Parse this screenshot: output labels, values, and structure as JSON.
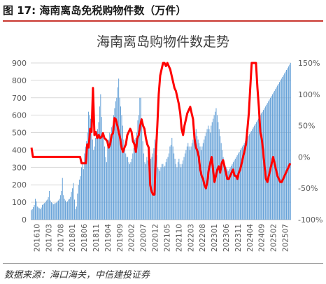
{
  "figure": {
    "label": "图 17: 海南离岛免税购物件数（万件）",
    "source": "数据来源：海口海关，中信建投证券"
  },
  "chart_data": {
    "type": "bar",
    "title": "海南离岛购物件数走势",
    "x_tick_labels": [
      "201610",
      "201703",
      "201708",
      "201801",
      "201806",
      "201811",
      "201904",
      "201909",
      "202002",
      "202007",
      "202012",
      "202105",
      "202110",
      "202203",
      "202208",
      "202301",
      "202306",
      "202311",
      "202404",
      "202409",
      "202502",
      "202507"
    ],
    "left_axis": {
      "min": 0,
      "max": 900,
      "ticks": [
        0,
        100,
        200,
        300,
        400,
        500,
        600,
        700,
        800,
        900
      ]
    },
    "right_axis": {
      "min": -100,
      "max": 150,
      "ticks": [
        "-100%",
        "-50%",
        "0%",
        "50%",
        "100%",
        "150%"
      ],
      "tick_values": [
        -100,
        -50,
        0,
        50,
        100,
        150
      ]
    },
    "grid": true,
    "colors": {
      "bars": "#5b9bd5",
      "line": "#ff0000",
      "axis_text": "#595959",
      "title": "#404040"
    },
    "series": [
      {
        "kind": "bar",
        "axis": "left",
        "unit": "万件",
        "values": [
          55,
          60,
          72,
          85,
          120,
          105,
          75,
          70,
          65,
          60,
          70,
          85,
          90,
          95,
          100,
          110,
          115,
          130,
          165,
          110,
          100,
          95,
          88,
          92,
          95,
          98,
          105,
          110,
          120,
          140,
          165,
          240,
          140,
          120,
          110,
          100,
          105,
          115,
          120,
          130,
          160,
          180,
          210,
          115,
          60,
          75,
          150,
          200,
          230,
          250,
          300,
          330,
          290,
          380,
          420,
          450,
          500,
          620,
          600,
          580,
          520,
          460,
          400,
          420,
          470,
          500,
          520,
          560,
          650,
          720,
          590,
          500,
          470,
          420,
          360,
          330,
          440,
          460,
          500,
          430,
          530,
          540,
          600,
          640,
          680,
          700,
          760,
          810,
          700,
          650,
          600,
          540,
          460,
          420,
          380,
          360,
          360,
          330,
          320,
          330,
          350,
          380,
          410,
          460,
          470,
          500,
          570,
          600,
          700,
          700,
          560,
          450,
          380,
          330,
          320,
          360,
          340,
          300,
          320,
          350,
          360,
          380,
          410,
          460,
          430,
          370,
          300,
          290,
          280,
          300,
          320,
          320,
          300,
          310,
          330,
          350,
          360,
          380,
          420,
          430,
          470,
          420,
          380,
          350,
          320,
          300,
          330,
          350,
          320,
          300,
          320,
          340,
          360,
          380,
          400,
          420,
          440,
          420,
          400,
          420,
          440,
          460,
          480,
          500,
          520,
          480,
          460,
          440,
          420,
          400,
          420,
          440,
          460,
          480,
          500,
          520,
          540,
          520,
          500,
          540,
          560,
          580,
          600,
          620,
          640,
          600,
          560,
          520,
          480,
          440,
          400,
          360,
          330,
          310,
          300,
          290,
          280,
          290,
          300,
          310,
          320,
          330,
          340,
          350,
          360,
          370,
          380,
          390,
          400,
          410,
          420,
          430,
          440,
          450,
          460,
          470,
          480,
          490,
          500,
          510,
          520,
          530,
          540,
          550,
          560,
          570,
          580,
          590,
          600,
          610,
          620,
          630,
          640,
          650,
          660,
          670,
          680,
          690,
          700,
          710,
          720,
          730,
          740,
          750,
          760,
          770,
          780,
          790,
          800,
          810,
          820,
          830,
          840,
          850,
          860,
          870,
          880,
          890,
          900
        ]
      },
      {
        "kind": "line",
        "axis": "right",
        "unit": "%",
        "values": [
          15,
          0,
          0,
          0,
          0,
          0,
          0,
          0,
          0,
          0,
          0,
          0,
          0,
          0,
          0,
          0,
          0,
          0,
          0,
          0,
          0,
          0,
          0,
          0,
          0,
          0,
          0,
          0,
          0,
          0,
          0,
          0,
          0,
          0,
          0,
          -10,
          -10,
          -10,
          -10,
          20,
          15,
          45,
          40,
          110,
          35,
          40,
          30,
          35,
          30,
          32,
          38,
          30,
          28,
          25,
          15,
          20,
          35,
          38,
          62,
          60,
          50,
          40,
          30,
          15,
          8,
          15,
          20,
          35,
          40,
          45,
          40,
          25,
          20,
          8,
          30,
          35,
          50,
          60,
          50,
          45,
          30,
          20,
          15,
          -45,
          -55,
          -60,
          -60,
          5,
          50,
          100,
          130,
          140,
          150,
          150,
          145,
          150,
          145,
          140,
          130,
          120,
          110,
          105,
          95,
          85,
          70,
          45,
          35,
          50,
          60,
          70,
          75,
          80,
          70,
          60,
          30,
          15,
          10,
          0,
          -20,
          -30,
          -35,
          -45,
          -50,
          -40,
          -20,
          -10,
          0,
          -20,
          -40,
          -30,
          -20,
          -15,
          -25,
          -10,
          -5,
          -15,
          -25,
          -35,
          -35,
          -30,
          -25,
          -20,
          -30,
          -30,
          -35,
          -25,
          -20,
          -10,
          0,
          10,
          20,
          45,
          70,
          110,
          150,
          150,
          150,
          150,
          110,
          80,
          40,
          30,
          10,
          -15,
          -35,
          -40,
          -30,
          -20,
          -10,
          0,
          -10,
          -20,
          -30,
          -35,
          -40,
          -40,
          -35,
          -30,
          -25,
          -20,
          -15,
          -10
        ]
      }
    ]
  }
}
